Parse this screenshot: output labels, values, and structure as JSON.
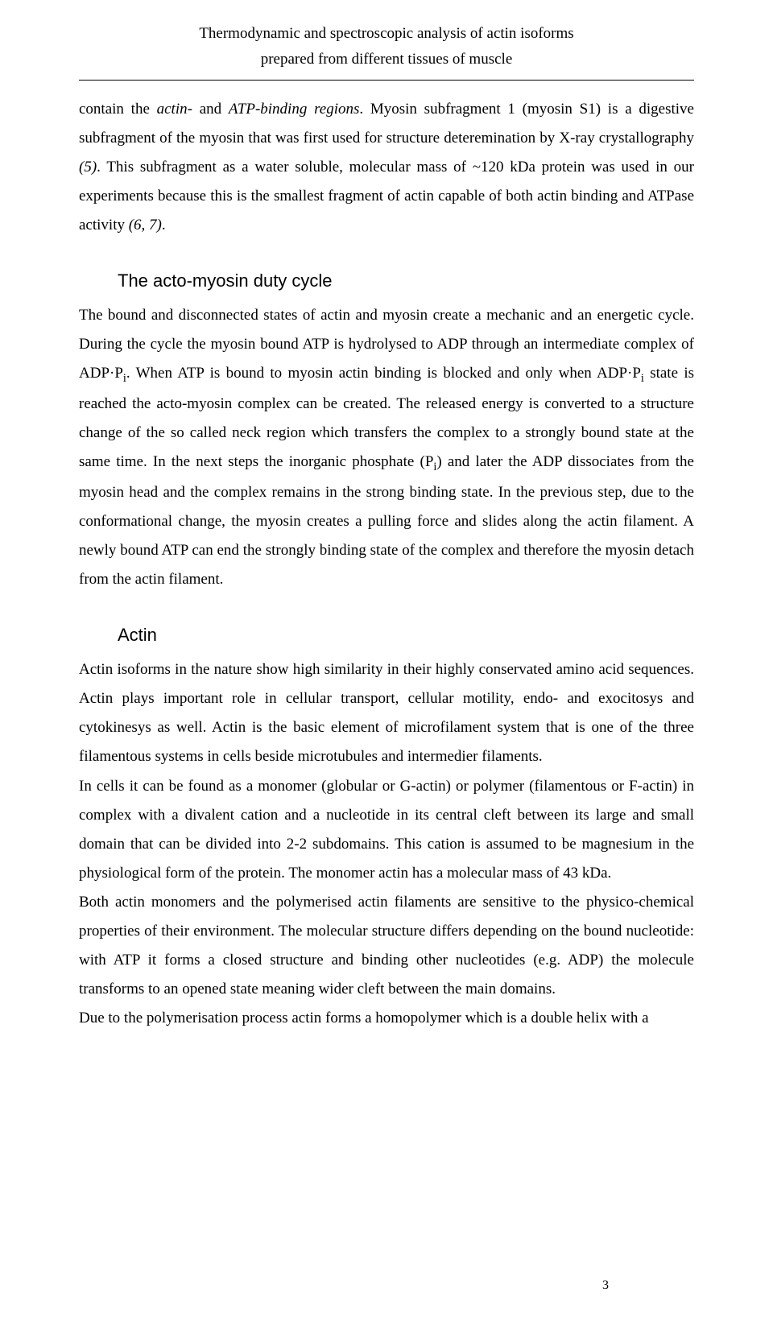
{
  "header": {
    "line1": "Thermodynamic and spectroscopic analysis of actin isoforms",
    "line2": "prepared from different tissues of muscle"
  },
  "para1": {
    "text_a": "contain the ",
    "italic1": "actin",
    "text_b": "- and ",
    "italic2": "ATP-binding regions",
    "text_c": ". Myosin subfragment 1 (myosin S1) is a digestive subfragment of the myosin that was first used for structure deteremination by X-ray crystallography ",
    "italic3": "(5)",
    "text_d": ". This subfragment as a water soluble, molecular mass of ~120 kDa protein was used in our experiments because this is the smallest fragment of actin capable of both actin binding and ATPase activity ",
    "italic4": "(6, 7)",
    "text_e": "."
  },
  "heading1": "The acto-myosin duty cycle",
  "para2": {
    "text_a": "The bound and disconnected states of actin and myosin create a mechanic and an energetic cycle. During the cycle the myosin bound ATP is hydrolysed to ADP through an intermediate complex of ADP·P",
    "sub1": "i",
    "text_b": ". When ATP is bound to myosin actin binding is blocked and only when ADP·P",
    "sub2": "i",
    "text_c": " state is reached the acto-myosin complex can be created. The released energy is converted to a structure change of the so called neck region which transfers the complex to a strongly bound state at the same time. In the next steps the inorganic phosphate (P",
    "sub3": "i",
    "text_d": ") and later the ADP dissociates from the myosin head and the complex remains in the strong binding state. In the previous step, due to the conformational change, the myosin creates a pulling force and slides along the actin filament. A newly bound ATP can end the strongly binding state of the complex and therefore the myosin detach from the actin filament."
  },
  "heading2": "Actin",
  "para3": "Actin isoforms in the nature show high similarity in their highly conservated amino acid sequences. Actin plays important role in cellular transport, cellular motility, endo- and exocitosys and cytokinesys as well. Actin is the basic element of microfilament system that is one of the three filamentous systems in cells beside microtubules and intermedier filaments.",
  "para4": "In cells it can be found as a monomer (globular or G-actin) or polymer (filamentous or F-actin) in complex with a divalent cation and a nucleotide in its central cleft between its large and small domain that can be divided into 2-2 subdomains. This cation is assumed to be magnesium in the physiological form of the protein. The monomer actin has a molecular mass of 43 kDa.",
  "para5": "Both actin monomers and the polymerised actin filaments are sensitive to the physico-chemical properties of their environment. The molecular structure differs depending on the bound nucleotide: with ATP it forms a closed structure and binding other nucleotides (e.g. ADP) the molecule transforms to an opened state meaning wider cleft between the main domains.",
  "para6": "Due to the polymerisation process actin forms a homopolymer which is a double helix with a",
  "page_number": "3"
}
